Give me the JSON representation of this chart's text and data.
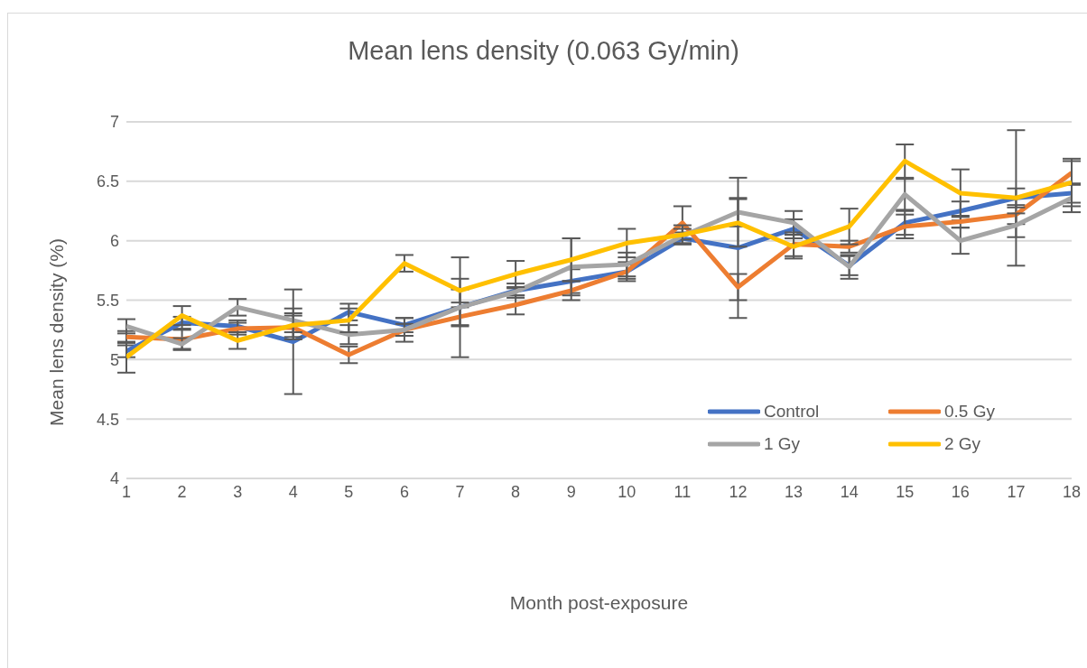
{
  "chart_data": {
    "type": "line",
    "title": "Mean lens density (0.063 Gy/min)",
    "xlabel": "Month post-exposure",
    "ylabel": "Mean lens density (%)",
    "x": [
      1,
      2,
      3,
      4,
      5,
      6,
      7,
      8,
      9,
      10,
      11,
      12,
      13,
      14,
      15,
      16,
      17,
      18
    ],
    "xlim": [
      1,
      18
    ],
    "xticks": [
      1,
      2,
      3,
      4,
      5,
      6,
      7,
      8,
      9,
      10,
      11,
      12,
      13,
      14,
      15,
      16,
      17,
      18
    ],
    "ylim": [
      4,
      7
    ],
    "yticks": [
      4,
      4.5,
      5,
      5.5,
      6,
      6.5,
      7
    ],
    "grid": "y",
    "legend": "bottom right",
    "marker": "none",
    "line_style": "solid",
    "series": [
      {
        "name": "Control",
        "color": "#4472c4",
        "values": [
          5.07,
          5.31,
          5.28,
          5.15,
          5.4,
          5.29,
          5.44,
          5.58,
          5.66,
          5.74,
          6.02,
          5.94,
          6.1,
          5.79,
          6.15,
          6.25,
          6.36,
          6.4
        ],
        "errors": [
          0.05,
          0.05,
          0.05,
          0.44,
          0.07,
          0.06,
          0.42,
          0.06,
          0.1,
          0.08,
          0.05,
          0.59,
          0.08,
          0.08,
          0.1,
          0.08,
          0.57,
          0.08
        ]
      },
      {
        "name": "0.5 Gy",
        "color": "#ed7d31",
        "values": [
          5.19,
          5.17,
          5.26,
          5.27,
          5.04,
          5.25,
          5.36,
          5.46,
          5.58,
          5.74,
          6.15,
          5.61,
          5.97,
          5.95,
          6.12,
          6.16,
          6.22,
          6.57
        ],
        "errors": [
          0.05,
          0.08,
          0.05,
          0.1,
          0.07,
          0.1,
          0.08,
          0.08,
          0.08,
          0.06,
          0.14,
          0.11,
          0.1,
          0.05,
          0.1,
          0.05,
          0.08,
          0.1
        ]
      },
      {
        "name": "1 Gy",
        "color": "#a5a5a5",
        "values": [
          5.28,
          5.13,
          5.44,
          5.33,
          5.21,
          5.25,
          5.44,
          5.57,
          5.78,
          5.8,
          6.04,
          6.24,
          6.15,
          5.78,
          6.39,
          6.0,
          6.13,
          6.36
        ],
        "errors": [
          0.06,
          0.05,
          0.07,
          0.1,
          0.08,
          0.05,
          0.15,
          0.03,
          0.24,
          0.1,
          0.06,
          0.12,
          0.1,
          0.1,
          0.13,
          0.11,
          0.1,
          0.12
        ]
      },
      {
        "name": "2 Gy",
        "color": "#ffc000",
        "values": [
          5.02,
          5.37,
          5.16,
          5.29,
          5.33,
          5.81,
          5.58,
          5.72,
          5.84,
          5.98,
          6.05,
          6.15,
          5.95,
          6.12,
          6.67,
          6.4,
          6.36,
          6.49
        ],
        "errors": [
          0.13,
          0.08,
          0.07,
          0.1,
          0.1,
          0.07,
          0.1,
          0.11,
          0.18,
          0.12,
          0.08,
          0.2,
          0.1,
          0.15,
          0.14,
          0.2,
          0.08,
          0.2
        ]
      }
    ]
  }
}
